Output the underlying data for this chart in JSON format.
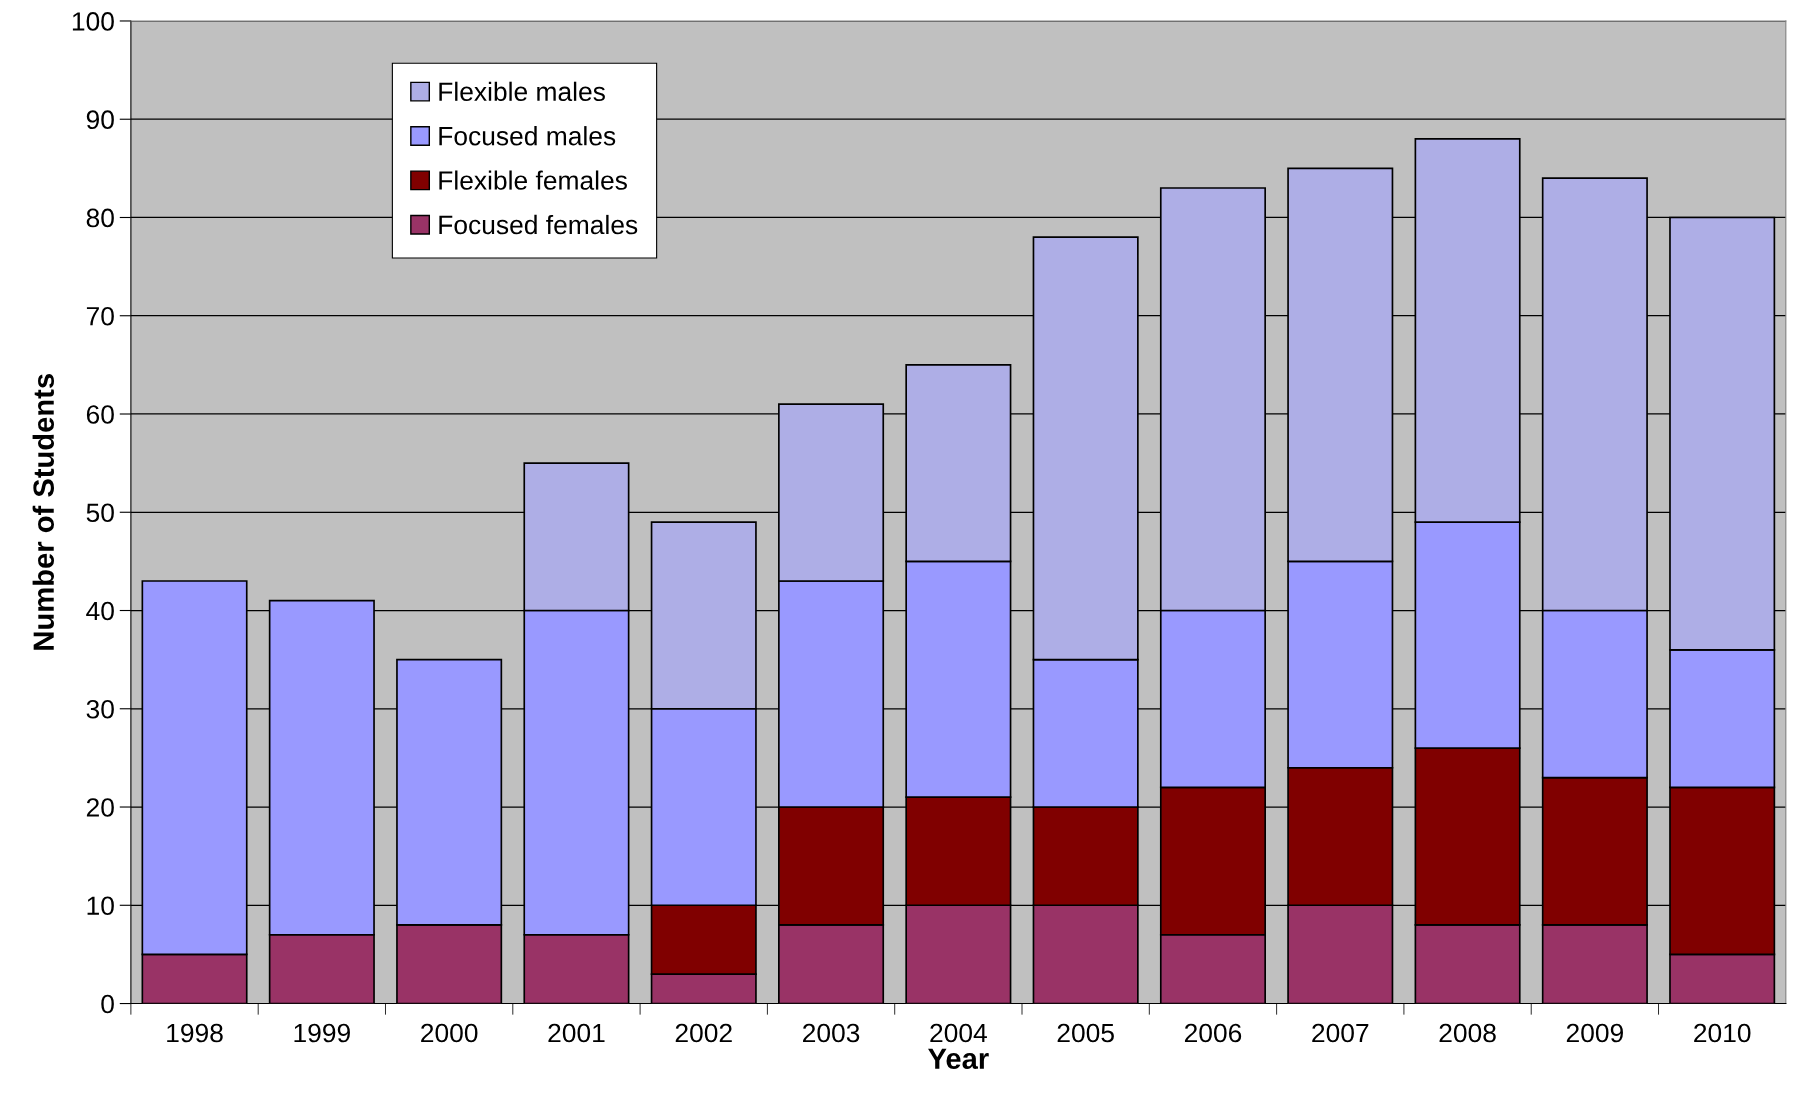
{
  "chart_data": {
    "type": "bar",
    "stacked": true,
    "xlabel": "Year",
    "ylabel": "Number of Students",
    "categories": [
      "1998",
      "1999",
      "2000",
      "2001",
      "2002",
      "2003",
      "2004",
      "2005",
      "2006",
      "2007",
      "2008",
      "2009",
      "2010"
    ],
    "series": [
      {
        "name": "Focused females",
        "color": "#993366",
        "values": [
          5,
          7,
          8,
          7,
          3,
          8,
          10,
          10,
          7,
          10,
          8,
          8,
          5
        ]
      },
      {
        "name": "Flexible females",
        "color": "#800000",
        "values": [
          0,
          0,
          0,
          0,
          7,
          12,
          11,
          10,
          15,
          14,
          18,
          15,
          17
        ]
      },
      {
        "name": "Focused males",
        "color": "#9999ff",
        "values": [
          38,
          34,
          27,
          33,
          20,
          23,
          24,
          15,
          18,
          21,
          23,
          17,
          14
        ]
      },
      {
        "name": "Flexible males",
        "color": "#aeaee6",
        "values": [
          0,
          0,
          0,
          15,
          19,
          18,
          20,
          43,
          43,
          40,
          39,
          44,
          44
        ]
      }
    ],
    "ylim": [
      0,
      100
    ],
    "yticks": [
      0,
      10,
      20,
      30,
      40,
      50,
      60,
      70,
      80,
      90,
      100
    ],
    "grid": "y",
    "legend": "top left"
  }
}
